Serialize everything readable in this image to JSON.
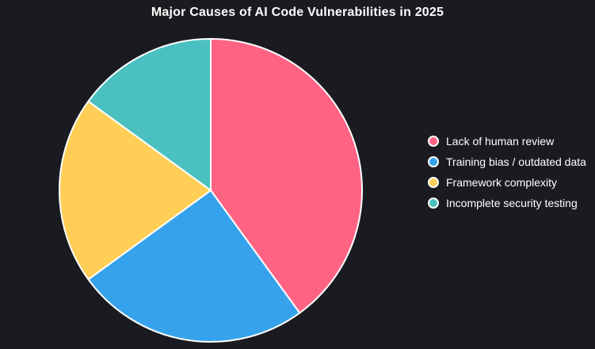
{
  "page": {
    "background_color": "#1a1b20",
    "text_color": "#ffffff",
    "slice_border_color": "#ffffff"
  },
  "chart_data": {
    "type": "pie",
    "title": "Major Causes of AI Code Vulnerabilities in 2025",
    "labels": [
      "Lack of human review",
      "Training bias / outdated data",
      "Framework complexity",
      "Incomplete security testing"
    ],
    "values": [
      40,
      25,
      20,
      15
    ],
    "unit": "percent",
    "colors": [
      "#FF6384",
      "#36A2EB",
      "#FFCE56",
      "#4BC0C0"
    ],
    "start_angle_deg": 0,
    "direction": "clockwise",
    "legend_position": "right",
    "grid": "off"
  }
}
